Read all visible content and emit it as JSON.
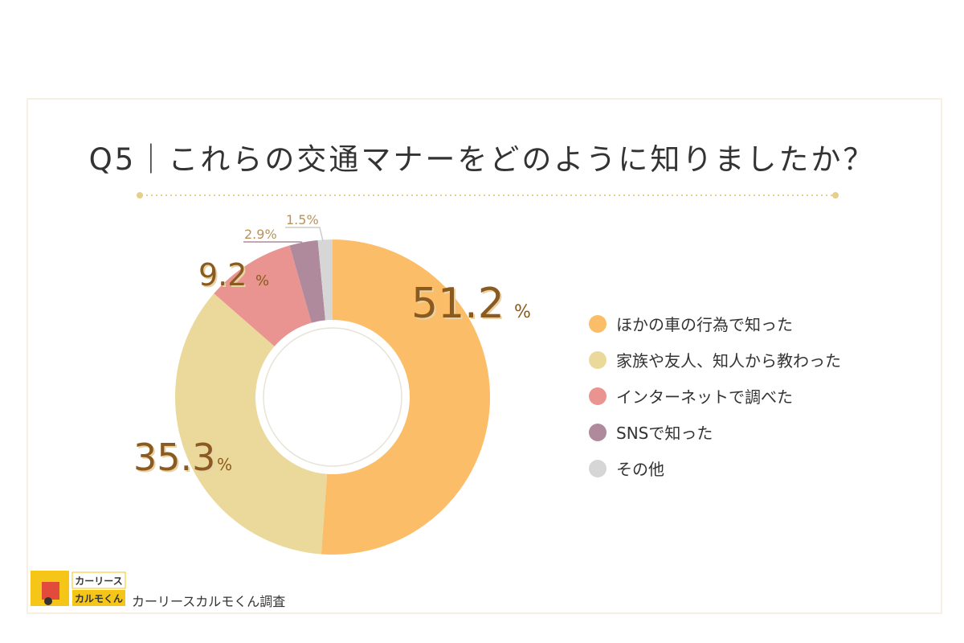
{
  "title": "Q5｜これらの交通マナーをどのように知りましたか？",
  "chart_data": {
    "type": "pie",
    "donut": true,
    "categories": [
      "ほかの車の行為で知った",
      "家族や友人、知人から教わった",
      "インターネットで調べた",
      "SNSで知った",
      "その他"
    ],
    "values": [
      51.2,
      35.3,
      9.2,
      2.9,
      1.5
    ],
    "labels": [
      "51.2",
      "35.3",
      "9.2",
      "2.9%",
      "1.5%"
    ],
    "percent_sign": "%",
    "colors": [
      "#fbbd67",
      "#ead99a",
      "#e99490",
      "#ae8a9c",
      "#d6d6d6"
    ],
    "legend_position": "right"
  },
  "logo": {
    "line1": "カーリース",
    "line2": "カルモくん"
  },
  "source": "カーリースカルモくん調査"
}
